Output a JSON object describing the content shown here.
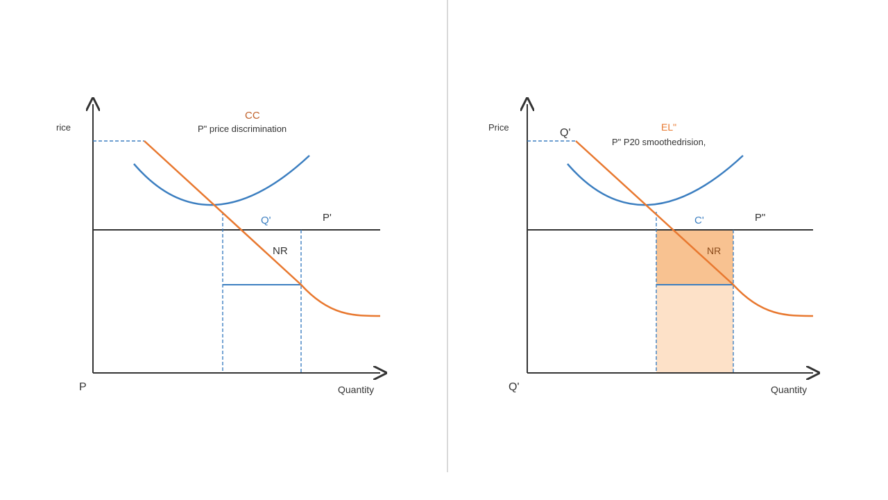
{
  "colors": {
    "axis": "#333333",
    "blue": "#3b7ec0",
    "orange": "#e8782f",
    "shade_dark": "#f8c291",
    "shade_light": "#fde1c8",
    "divider": "#d9d9d9"
  },
  "left_panel": {
    "y_axis_label": "rice",
    "origin_label": "P",
    "x_axis_label": "Quantity",
    "top_label": "CC",
    "subtitle": "P\" price discrimination",
    "q_label": "Q'",
    "p_label": "P'",
    "curve_label": "NR"
  },
  "right_panel": {
    "y_axis_label": "Price",
    "origin_label": "Q'",
    "x_axis_label": "Quantity",
    "top_left_label": "Q'",
    "top_label": "EL\"",
    "subtitle": "P\" P20 smoothedrision,",
    "q_label": "C'",
    "p_label": "P\"",
    "curve_label": "NR"
  }
}
